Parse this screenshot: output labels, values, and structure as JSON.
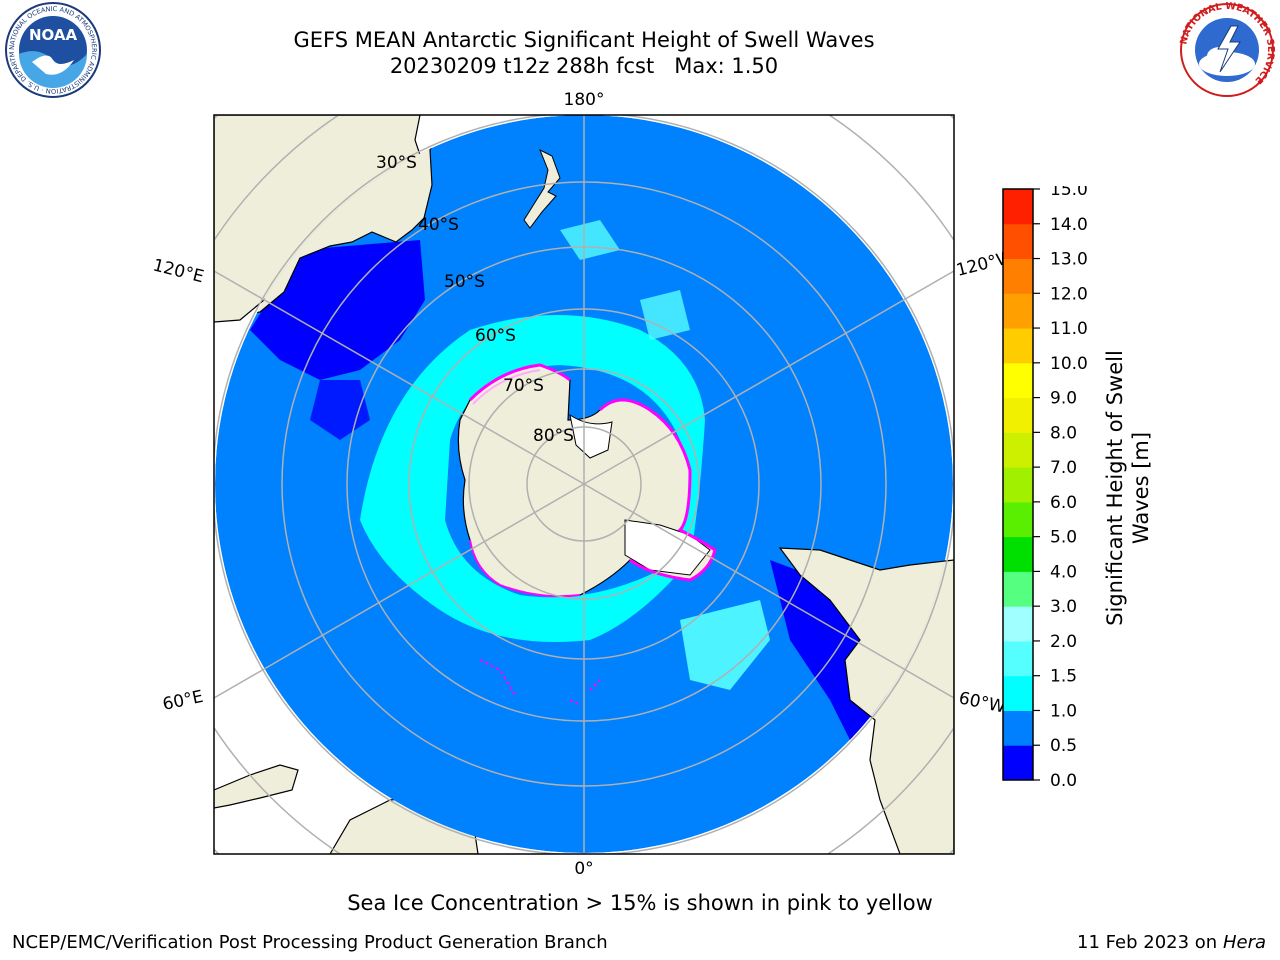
{
  "header": {
    "title": "GEFS MEAN Antarctic Significant Height of Swell Waves",
    "subtitle": "20230209 t12z 288h fcst   Max: 1.50"
  },
  "logos": {
    "noaa": {
      "text": "NOAA",
      "ring_text": "NATIONAL OCEANIC AND ATMOSPHERIC ADMINISTRATION · U.S. DEPARTMENT OF COMMERCE"
    },
    "nws": {
      "ring_text": "NATIONAL WEATHER SERVICE"
    }
  },
  "map": {
    "projection": "south-polar-stereographic",
    "longitude_labels": {
      "top": "180°",
      "bottom": "0°",
      "left_upper": "120°E",
      "left_lower": "60°E",
      "right_upper": "120°W",
      "right_lower": "60°W"
    },
    "latitude_labels": [
      "30°S",
      "40°S",
      "50°S",
      "60°S",
      "70°S",
      "80°S"
    ],
    "colors": {
      "land": "#efeedb",
      "ocean_base": "#0082ff",
      "low_swell": "#0000ff",
      "mid_swell": "#00ffff",
      "light_swell": "#55ffff",
      "sea_ice_edge": "#ff00ff",
      "sea_ice_inner": "#ffaaff",
      "gridlines": "#b0b0b0"
    }
  },
  "colorbar": {
    "label": "Significant Height of Swell Waves [m]",
    "ticks": [
      "0.0",
      "0.5",
      "1.0",
      "1.5",
      "2.0",
      "3.0",
      "4.0",
      "5.0",
      "6.0",
      "7.0",
      "8.0",
      "9.0",
      "10.0",
      "11.0",
      "12.0",
      "13.0",
      "14.0",
      "15.0"
    ],
    "colors": [
      "#0000ff",
      "#0080ff",
      "#00ffff",
      "#55ffff",
      "#a0ffff",
      "#55ff80",
      "#00e000",
      "#5aef00",
      "#a0f000",
      "#ccf000",
      "#f0f000",
      "#ffff00",
      "#ffcc00",
      "#ffa000",
      "#ff8000",
      "#ff5000",
      "#ff2000"
    ]
  },
  "footer": {
    "caption": "Sea Ice Concentration > 15% is shown in pink to yellow",
    "credit": "NCEP/EMC/Verification Post Processing Product Generation Branch",
    "date": "11 Feb 2023 on",
    "host": "Hera"
  }
}
